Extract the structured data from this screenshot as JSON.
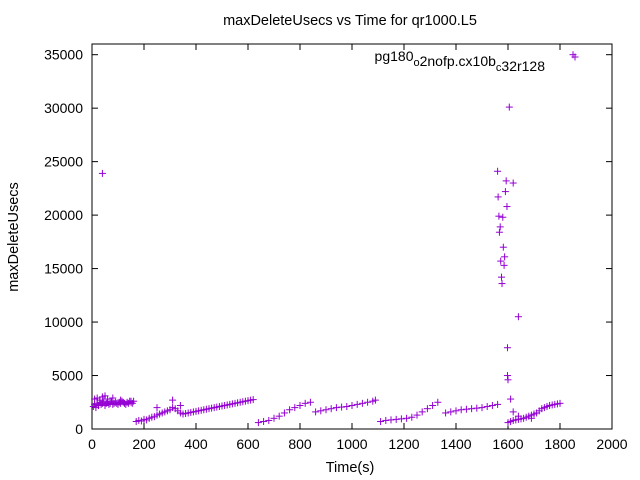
{
  "chart_data": {
    "type": "scatter",
    "title": "maxDeleteUsecs vs Time for qr1000.L5",
    "xlabel": "Time(s)",
    "ylabel": "maxDeleteUsecs",
    "xlim": [
      0,
      2000
    ],
    "ylim": [
      0,
      36000
    ],
    "x_ticks": [
      0,
      200,
      400,
      600,
      800,
      1000,
      1200,
      1400,
      1600,
      1800,
      2000
    ],
    "x_tick_labels": [
      "0",
      "200",
      "400",
      "600",
      "800",
      "1000",
      "1200",
      "1400",
      "1600",
      "1800",
      "2000"
    ],
    "y_ticks": [
      0,
      5000,
      10000,
      15000,
      20000,
      25000,
      30000,
      35000
    ],
    "y_tick_labels": [
      "0",
      "5000",
      "10000",
      "15000",
      "20000",
      "25000",
      "30000",
      "35000"
    ],
    "grid": false,
    "legend_position": "top-right",
    "marker": "plus",
    "series": [
      {
        "name": "pg180_o2nofp.cx10b_c32r128",
        "color": "#9400d3",
        "legend_parts": [
          {
            "text": "pg180",
            "sub": false
          },
          {
            "text": "o",
            "sub": true
          },
          {
            "text": "2nofp.cx10b",
            "sub": false
          },
          {
            "text": "c",
            "sub": true
          },
          {
            "text": "32r128",
            "sub": false
          }
        ],
        "x": [
          5,
          10,
          15,
          20,
          25,
          30,
          35,
          40,
          45,
          50,
          55,
          60,
          65,
          70,
          75,
          80,
          85,
          90,
          95,
          100,
          105,
          110,
          115,
          120,
          125,
          130,
          135,
          140,
          145,
          150,
          155,
          160,
          10,
          20,
          30,
          40,
          50,
          60,
          80,
          110,
          150,
          170,
          180,
          190,
          200,
          210,
          220,
          230,
          240,
          250,
          260,
          270,
          280,
          290,
          300,
          310,
          320,
          330,
          340,
          350,
          360,
          370,
          380,
          390,
          400,
          410,
          420,
          430,
          440,
          450,
          460,
          470,
          480,
          490,
          500,
          510,
          520,
          530,
          540,
          550,
          560,
          570,
          580,
          590,
          600,
          610,
          620,
          250,
          310,
          340,
          640,
          660,
          680,
          700,
          720,
          740,
          760,
          780,
          800,
          820,
          840,
          860,
          880,
          900,
          920,
          940,
          960,
          980,
          1000,
          1020,
          1040,
          1060,
          1080,
          1090,
          1110,
          1130,
          1150,
          1170,
          1190,
          1210,
          1230,
          1250,
          1270,
          1290,
          1310,
          1330,
          1360,
          1380,
          1400,
          1420,
          1440,
          1460,
          1480,
          1500,
          1520,
          1540,
          1560,
          1600,
          1610,
          1620,
          1630,
          1640,
          1650,
          1660,
          1670,
          1680,
          1690,
          1700,
          1710,
          1720,
          1730,
          1740,
          1750,
          1760,
          1770,
          1780,
          1790,
          1800,
          1620,
          1640,
          1690,
          40,
          1560,
          1562,
          1565,
          1567,
          1570,
          1572,
          1575,
          1577,
          1580,
          1582,
          1585,
          1587,
          1590,
          1593,
          1596,
          1598,
          1600,
          1610,
          1620,
          1640,
          1598,
          1605,
          1850
        ],
        "y": [
          2100,
          2300,
          2000,
          2400,
          2200,
          2500,
          2300,
          2400,
          2600,
          2200,
          2400,
          2500,
          2300,
          2400,
          2600,
          2300,
          2400,
          2500,
          2400,
          2300,
          2500,
          2400,
          2600,
          2500,
          2400,
          2300,
          2500,
          2400,
          2600,
          2500,
          2400,
          2600,
          2800,
          2900,
          2700,
          3000,
          3100,
          2800,
          2900,
          2700,
          2600,
          700,
          800,
          750,
          900,
          850,
          1000,
          1100,
          1150,
          1300,
          1400,
          1500,
          1600,
          1700,
          1800,
          2000,
          1900,
          1700,
          1500,
          1400,
          1450,
          1500,
          1550,
          1600,
          1650,
          1700,
          1750,
          1800,
          1850,
          1900,
          1950,
          2000,
          2050,
          2100,
          2150,
          2200,
          2250,
          2300,
          2350,
          2400,
          2450,
          2500,
          2550,
          2600,
          2650,
          2700,
          2750,
          2000,
          2700,
          2200,
          600,
          700,
          800,
          1000,
          1200,
          1500,
          1800,
          2000,
          2200,
          2400,
          2500,
          1600,
          1700,
          1800,
          1900,
          2000,
          2050,
          2100,
          2200,
          2300,
          2400,
          2500,
          2600,
          2700,
          700,
          800,
          850,
          900,
          950,
          1000,
          1100,
          1300,
          1600,
          1900,
          2200,
          2500,
          1500,
          1600,
          1700,
          1800,
          1850,
          1900,
          1950,
          2000,
          2100,
          2200,
          2300,
          600,
          700,
          800,
          850,
          900,
          950,
          1000,
          1100,
          1200,
          1300,
          1400,
          1500,
          1700,
          1900,
          2000,
          2100,
          2200,
          2250,
          2300,
          2350,
          2400,
          1600,
          1200,
          1000,
          23900,
          24100,
          21700,
          19900,
          18400,
          18900,
          15700,
          14200,
          13600,
          19800,
          17000,
          15300,
          16100,
          22200,
          23200,
          20800,
          7600,
          4600,
          2800,
          23000,
          10500,
          5000,
          30100,
          35000
        ]
      }
    ]
  }
}
